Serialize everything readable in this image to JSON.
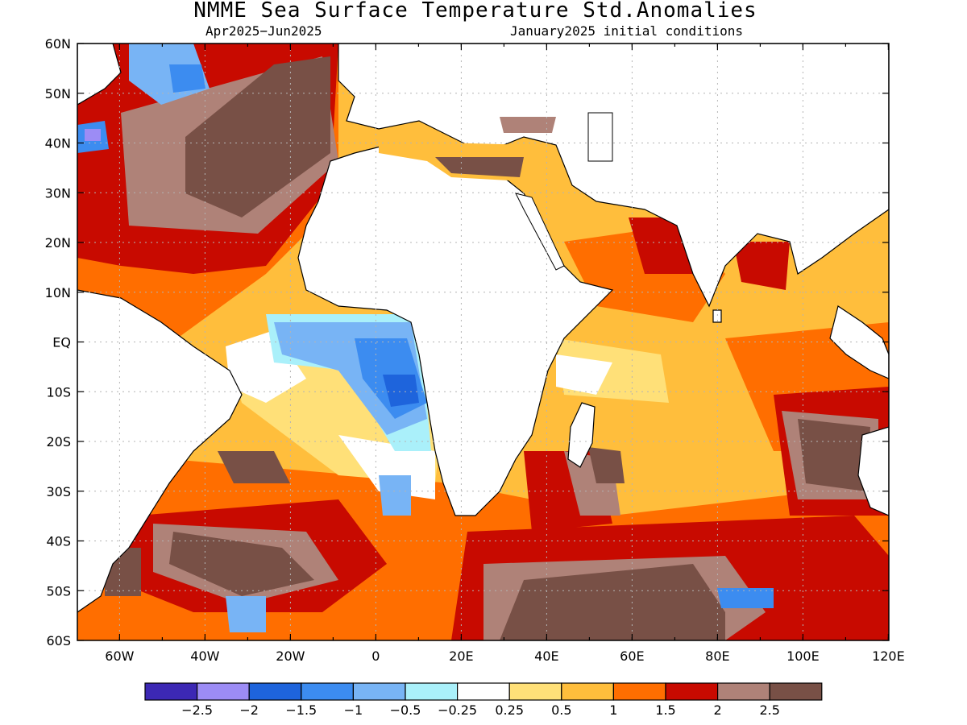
{
  "title": "NMME Sea Surface Temperature Std.Anomalies",
  "period": "Apr2025−Jun2025",
  "init": "January2025 initial conditions",
  "lat_labels": [
    "60N",
    "50N",
    "40N",
    "30N",
    "20N",
    "10N",
    "EQ",
    "10S",
    "20S",
    "30S",
    "40S",
    "50S",
    "60S"
  ],
  "lon_labels": [
    "60W",
    "40W",
    "20W",
    "0",
    "20E",
    "40E",
    "60E",
    "80E",
    "100E",
    "120E"
  ],
  "legend": {
    "colors": [
      "#3c28b4",
      "#9c8cf5",
      "#1e64dc",
      "#3c8cf0",
      "#78b4f5",
      "#aaf0fa",
      "#ffffff",
      "#ffe078",
      "#ffbe3c",
      "#ff6e00",
      "#c80a00",
      "#af8278",
      "#785046"
    ],
    "labels": [
      "−2.5",
      "−2",
      "−1.5",
      "−1",
      "−0.5",
      "−0.25",
      "0.25",
      "0.5",
      "1",
      "1.5",
      "2",
      "2.5"
    ]
  },
  "colors": {
    "ocean_base": "#ffbe3c",
    "land": "#ffffff",
    "coast": "#000000",
    "grid": "#b4b4b4"
  }
}
